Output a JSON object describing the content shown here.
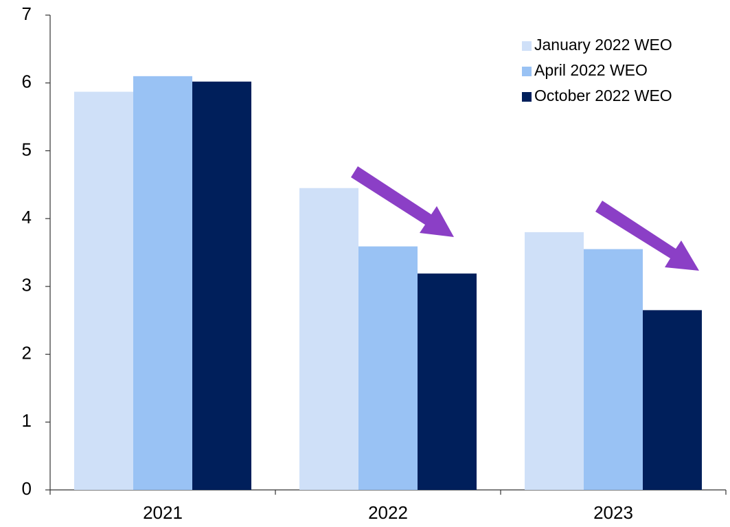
{
  "chart_data": {
    "type": "bar",
    "categories": [
      "2021",
      "2022",
      "2023"
    ],
    "series": [
      {
        "name": "January 2022 WEO",
        "color": "#cfe0f8",
        "values": [
          5.87,
          4.45,
          3.8
        ]
      },
      {
        "name": "April 2022 WEO",
        "color": "#99c2f4",
        "values": [
          6.1,
          3.59,
          3.55
        ]
      },
      {
        "name": "October 2022 WEO",
        "color": "#001f5b",
        "values": [
          6.02,
          3.19,
          2.65
        ]
      }
    ],
    "ylim": [
      0,
      7
    ],
    "yticks": [
      0,
      1,
      2,
      3,
      4,
      5,
      6,
      7
    ],
    "grid": false,
    "legend": "top-right"
  }
}
